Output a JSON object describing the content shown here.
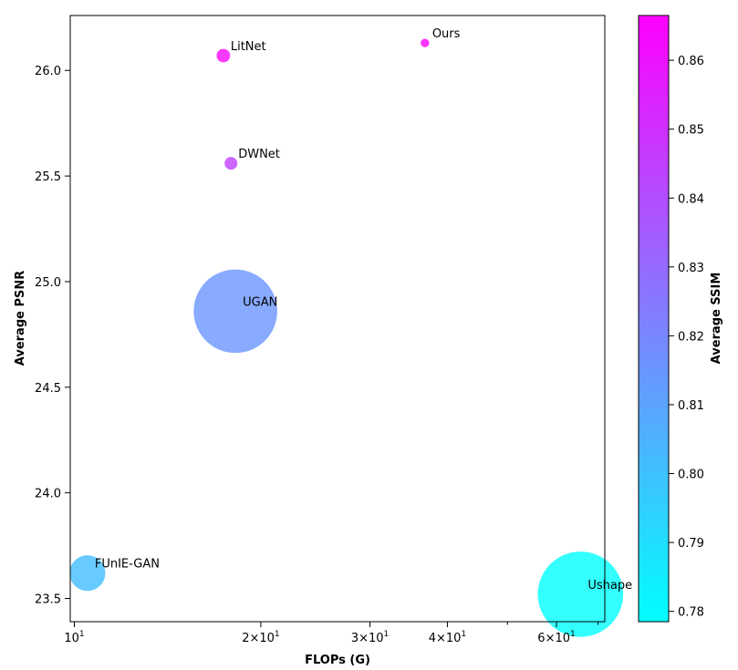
{
  "chart_data": {
    "type": "scatter",
    "title": "",
    "xlabel": "FLOPs (G)",
    "ylabel": "Average PSNR",
    "colorbar_label": "Average SSIM",
    "x_scale": "log",
    "xlim": [
      9.85,
      71.8
    ],
    "ylim": [
      23.39,
      26.26
    ],
    "x_tick_labels": [
      {
        "value": 10,
        "base": "10",
        "exp": "1"
      },
      {
        "value": 20,
        "base": "2×10",
        "exp": "1"
      },
      {
        "value": 30,
        "base": "3×10",
        "exp": "1"
      },
      {
        "value": 40,
        "base": "4×10",
        "exp": "1"
      },
      {
        "value": 60,
        "base": "6×10",
        "exp": "1"
      }
    ],
    "x_minor_ticks": [
      50,
      70
    ],
    "y_ticks": [
      23.5,
      24.0,
      24.5,
      25.0,
      25.5,
      26.0
    ],
    "y_tick_labels": [
      "23.5",
      "24.0",
      "24.5",
      "25.0",
      "25.5",
      "26.0"
    ],
    "colorbar": {
      "min": 0.7785,
      "max": 0.8665,
      "ticks": [
        0.78,
        0.79,
        0.8,
        0.81,
        0.82,
        0.83,
        0.84,
        0.85,
        0.86
      ],
      "tick_labels": [
        "0.78",
        "0.79",
        "0.80",
        "0.81",
        "0.82",
        "0.83",
        "0.84",
        "0.85",
        "0.86"
      ],
      "colormap": "cool",
      "color_low": "#00ffff",
      "color_high": "#ff00ff"
    },
    "points": [
      {
        "name": "Ours",
        "flops": 36.8,
        "psnr": 26.13,
        "ssim": 0.866,
        "size": 0.4
      },
      {
        "name": "LitNet",
        "flops": 17.4,
        "psnr": 26.07,
        "ssim": 0.864,
        "size": 1.0
      },
      {
        "name": "DWNet",
        "flops": 17.9,
        "psnr": 25.56,
        "ssim": 0.845,
        "size": 0.9
      },
      {
        "name": "UGAN",
        "flops": 18.2,
        "psnr": 24.86,
        "ssim": 0.815,
        "size": 38.3
      },
      {
        "name": "FUnIE-GAN",
        "flops": 10.5,
        "psnr": 23.62,
        "ssim": 0.801,
        "size": 7.0
      },
      {
        "name": "Ushape",
        "flops": 65.6,
        "psnr": 23.52,
        "ssim": 0.7785,
        "size": 40.0
      }
    ]
  }
}
